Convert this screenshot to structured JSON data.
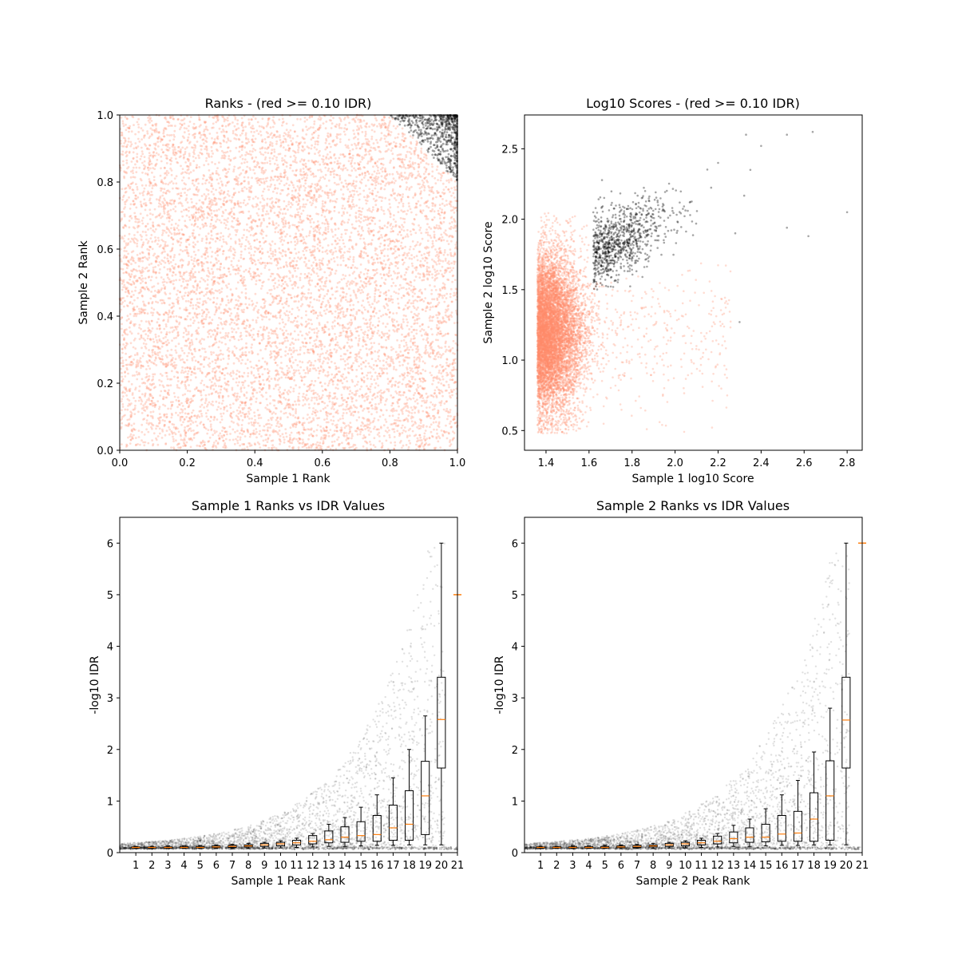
{
  "colors": {
    "below_threshold": "#ff8c69",
    "above_threshold": "#000000",
    "median_line": "#ff7f0e",
    "axes": "#000000",
    "background": "#ffffff"
  },
  "chart_data": [
    {
      "id": "ranks",
      "type": "scatter",
      "title": "Ranks - (red >= 0.10 IDR)",
      "xlabel": "Sample 1 Rank",
      "ylabel": "Sample 2 Rank",
      "xlim": [
        0.0,
        1.0
      ],
      "ylim": [
        0.0,
        1.0
      ],
      "xticks": [
        0.0,
        0.2,
        0.4,
        0.6,
        0.8,
        1.0
      ],
      "yticks": [
        0.0,
        0.2,
        0.4,
        0.6,
        0.8,
        1.0
      ],
      "xticklabels": [
        "0.0",
        "0.2",
        "0.4",
        "0.6",
        "0.8",
        "1.0"
      ],
      "yticklabels": [
        "0.0",
        "0.2",
        "0.4",
        "0.6",
        "0.8",
        "1.0"
      ],
      "grid": false,
      "series": [
        {
          "color": "#ff8c69",
          "distribution": "uniform over [0,1]x[0,1], excluding top-right corner where rank1 + rank2 > 1.8",
          "approx_points": 9000
        },
        {
          "color": "#000000",
          "distribution": "top-right corner, rank1 + rank2 > 1.8, densest near (1,1)",
          "approx_points": 900
        }
      ]
    },
    {
      "id": "scores",
      "type": "scatter",
      "title": "Log10 Scores - (red >= 0.10 IDR)",
      "xlabel": "Sample 1 log10 Score",
      "ylabel": "Sample 2 log10 Score",
      "xlim": [
        1.3,
        2.87
      ],
      "ylim": [
        0.36,
        2.74
      ],
      "xticks": [
        1.4,
        1.6,
        1.8,
        2.0,
        2.2,
        2.4,
        2.6,
        2.8
      ],
      "yticks": [
        0.5,
        1.0,
        1.5,
        2.0,
        2.5
      ],
      "xticklabels": [
        "1.4",
        "1.6",
        "1.8",
        "2.0",
        "2.2",
        "2.4",
        "2.6",
        "2.8"
      ],
      "yticklabels": [
        "0.5",
        "1.0",
        "1.5",
        "2.0",
        "2.5"
      ],
      "grid": false,
      "series": [
        {
          "color": "#ff8c69",
          "distribution": "dense cluster x 1.36-1.65, y 0.5-2.0, sparse tail to x ~2.3",
          "approx_points": 8500
        },
        {
          "color": "#000000",
          "distribution": "cluster x 1.6-2.1, y 1.5-2.2, sparse outliers to (2.8, 2.05)",
          "approx_points": 900
        }
      ]
    },
    {
      "id": "s1_idr",
      "type": "box",
      "title": "Sample 1 Ranks vs IDR Values",
      "xlabel": "Sample 1 Peak Rank",
      "ylabel": "-log10 IDR",
      "xlim": [
        0,
        21
      ],
      "ylim": [
        0,
        6.5
      ],
      "xticks": [
        1,
        2,
        3,
        4,
        5,
        6,
        7,
        8,
        9,
        10,
        11,
        12,
        13,
        14,
        15,
        16,
        17,
        18,
        19,
        20,
        21
      ],
      "xticklabels": [
        "1",
        "2",
        "3",
        "4",
        "5",
        "6",
        "7",
        "8",
        "9",
        "10",
        "11",
        "12",
        "13",
        "14",
        "15",
        "16",
        "17",
        "18",
        "19",
        "20",
        "21"
      ],
      "yticks": [
        0,
        1,
        2,
        3,
        4,
        5,
        6
      ],
      "yticklabels": [
        "0",
        "1",
        "2",
        "3",
        "4",
        "5",
        "6"
      ],
      "grid": false,
      "boxes": [
        {
          "pos": 1,
          "min": 0.08,
          "q1": 0.09,
          "median": 0.1,
          "q3": 0.11,
          "max": 0.12
        },
        {
          "pos": 2,
          "min": 0.08,
          "q1": 0.09,
          "median": 0.1,
          "q3": 0.11,
          "max": 0.12
        },
        {
          "pos": 3,
          "min": 0.08,
          "q1": 0.09,
          "median": 0.1,
          "q3": 0.11,
          "max": 0.13
        },
        {
          "pos": 4,
          "min": 0.08,
          "q1": 0.09,
          "median": 0.1,
          "q3": 0.12,
          "max": 0.13
        },
        {
          "pos": 5,
          "min": 0.08,
          "q1": 0.09,
          "median": 0.1,
          "q3": 0.12,
          "max": 0.14
        },
        {
          "pos": 6,
          "min": 0.08,
          "q1": 0.1,
          "median": 0.11,
          "q3": 0.13,
          "max": 0.15
        },
        {
          "pos": 7,
          "min": 0.08,
          "q1": 0.1,
          "median": 0.12,
          "q3": 0.14,
          "max": 0.16
        },
        {
          "pos": 8,
          "min": 0.08,
          "q1": 0.11,
          "median": 0.13,
          "q3": 0.15,
          "max": 0.18
        },
        {
          "pos": 9,
          "min": 0.09,
          "q1": 0.12,
          "median": 0.15,
          "q3": 0.18,
          "max": 0.2
        },
        {
          "pos": 10,
          "min": 0.09,
          "q1": 0.13,
          "median": 0.17,
          "q3": 0.2,
          "max": 0.23
        },
        {
          "pos": 11,
          "min": 0.1,
          "q1": 0.15,
          "median": 0.19,
          "q3": 0.24,
          "max": 0.28
        },
        {
          "pos": 12,
          "min": 0.11,
          "q1": 0.17,
          "median": 0.22,
          "q3": 0.33,
          "max": 0.37
        },
        {
          "pos": 13,
          "min": 0.12,
          "q1": 0.19,
          "median": 0.25,
          "q3": 0.42,
          "max": 0.55
        },
        {
          "pos": 14,
          "min": 0.12,
          "q1": 0.2,
          "median": 0.3,
          "q3": 0.5,
          "max": 0.68
        },
        {
          "pos": 15,
          "min": 0.13,
          "q1": 0.22,
          "median": 0.33,
          "q3": 0.6,
          "max": 0.88
        },
        {
          "pos": 16,
          "min": 0.14,
          "q1": 0.22,
          "median": 0.35,
          "q3": 0.72,
          "max": 1.12
        },
        {
          "pos": 17,
          "min": 0.14,
          "q1": 0.24,
          "median": 0.48,
          "q3": 0.92,
          "max": 1.45
        },
        {
          "pos": 18,
          "min": 0.15,
          "q1": 0.24,
          "median": 0.55,
          "q3": 1.2,
          "max": 2.0
        },
        {
          "pos": 19,
          "min": 0.15,
          "q1": 0.35,
          "median": 1.1,
          "q3": 1.77,
          "max": 2.65
        },
        {
          "pos": 20,
          "min": 0.15,
          "q1": 1.64,
          "median": 2.58,
          "q3": 3.4,
          "max": 6.0
        },
        {
          "pos": 21,
          "min": 5.0,
          "q1": 5.0,
          "median": 5.0,
          "q3": 5.0,
          "max": 5.0
        }
      ]
    },
    {
      "id": "s2_idr",
      "type": "box",
      "title": "Sample 2 Ranks vs IDR Values",
      "xlabel": "Sample 2 Peak Rank",
      "ylabel": "-log10 IDR",
      "xlim": [
        0,
        21
      ],
      "ylim": [
        0,
        6.5
      ],
      "xticks": [
        1,
        2,
        3,
        4,
        5,
        6,
        7,
        8,
        9,
        10,
        11,
        12,
        13,
        14,
        15,
        16,
        17,
        18,
        19,
        20,
        21
      ],
      "xticklabels": [
        "1",
        "2",
        "3",
        "4",
        "5",
        "6",
        "7",
        "8",
        "9",
        "10",
        "11",
        "12",
        "13",
        "14",
        "15",
        "16",
        "17",
        "18",
        "19",
        "20",
        "21"
      ],
      "yticks": [
        0,
        1,
        2,
        3,
        4,
        5,
        6
      ],
      "yticklabels": [
        "0",
        "1",
        "2",
        "3",
        "4",
        "5",
        "6"
      ],
      "grid": false,
      "boxes": [
        {
          "pos": 1,
          "min": 0.08,
          "q1": 0.09,
          "median": 0.1,
          "q3": 0.11,
          "max": 0.12
        },
        {
          "pos": 2,
          "min": 0.08,
          "q1": 0.09,
          "median": 0.1,
          "q3": 0.11,
          "max": 0.12
        },
        {
          "pos": 3,
          "min": 0.08,
          "q1": 0.09,
          "median": 0.1,
          "q3": 0.11,
          "max": 0.13
        },
        {
          "pos": 4,
          "min": 0.08,
          "q1": 0.09,
          "median": 0.1,
          "q3": 0.12,
          "max": 0.13
        },
        {
          "pos": 5,
          "min": 0.08,
          "q1": 0.09,
          "median": 0.1,
          "q3": 0.12,
          "max": 0.14
        },
        {
          "pos": 6,
          "min": 0.08,
          "q1": 0.1,
          "median": 0.11,
          "q3": 0.13,
          "max": 0.15
        },
        {
          "pos": 7,
          "min": 0.08,
          "q1": 0.1,
          "median": 0.12,
          "q3": 0.14,
          "max": 0.16
        },
        {
          "pos": 8,
          "min": 0.08,
          "q1": 0.11,
          "median": 0.13,
          "q3": 0.15,
          "max": 0.18
        },
        {
          "pos": 9,
          "min": 0.09,
          "q1": 0.12,
          "median": 0.15,
          "q3": 0.18,
          "max": 0.2
        },
        {
          "pos": 10,
          "min": 0.09,
          "q1": 0.13,
          "median": 0.17,
          "q3": 0.2,
          "max": 0.23
        },
        {
          "pos": 11,
          "min": 0.1,
          "q1": 0.15,
          "median": 0.19,
          "q3": 0.24,
          "max": 0.28
        },
        {
          "pos": 12,
          "min": 0.11,
          "q1": 0.17,
          "median": 0.22,
          "q3": 0.32,
          "max": 0.37
        },
        {
          "pos": 13,
          "min": 0.12,
          "q1": 0.19,
          "median": 0.27,
          "q3": 0.4,
          "max": 0.53
        },
        {
          "pos": 14,
          "min": 0.12,
          "q1": 0.2,
          "median": 0.3,
          "q3": 0.48,
          "max": 0.65
        },
        {
          "pos": 15,
          "min": 0.13,
          "q1": 0.21,
          "median": 0.3,
          "q3": 0.55,
          "max": 0.85
        },
        {
          "pos": 16,
          "min": 0.14,
          "q1": 0.22,
          "median": 0.36,
          "q3": 0.72,
          "max": 1.12
        },
        {
          "pos": 17,
          "min": 0.14,
          "q1": 0.22,
          "median": 0.38,
          "q3": 0.8,
          "max": 1.4
        },
        {
          "pos": 18,
          "min": 0.15,
          "q1": 0.22,
          "median": 0.65,
          "q3": 1.16,
          "max": 1.95
        },
        {
          "pos": 19,
          "min": 0.15,
          "q1": 0.24,
          "median": 1.1,
          "q3": 1.78,
          "max": 2.8
        },
        {
          "pos": 20,
          "min": 0.15,
          "q1": 1.64,
          "median": 2.57,
          "q3": 3.4,
          "max": 6.0
        },
        {
          "pos": 21,
          "min": 6.0,
          "q1": 6.0,
          "median": 6.0,
          "q3": 6.0,
          "max": 6.0
        }
      ]
    }
  ]
}
